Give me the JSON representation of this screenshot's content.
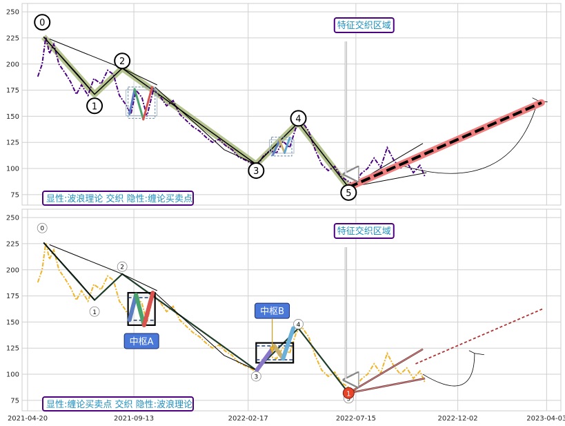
{
  "chart_data": [
    {
      "type": "line",
      "panel": "top",
      "ylim": [
        65,
        258
      ],
      "yticks": [
        75,
        100,
        125,
        150,
        175,
        200,
        225,
        250
      ],
      "grid": true,
      "annotation_feature": "特征交织区域",
      "bottom_label": "显性:波浪理论 交织 隐性:缠论买卖点",
      "colors": {
        "price": "#4b0082",
        "wave_band": "#a8b97a",
        "trend": "#000000",
        "forecast": "#f08080",
        "box": "#7a9ab8"
      },
      "price_series": [
        [
          "2021-05-04",
          188
        ],
        [
          "2021-05-10",
          200
        ],
        [
          "2021-05-15",
          226
        ],
        [
          "2021-05-20",
          210
        ],
        [
          "2021-05-26",
          219
        ],
        [
          "2021-06-02",
          200
        ],
        [
          "2021-06-10",
          192
        ],
        [
          "2021-06-18",
          183
        ],
        [
          "2021-06-26",
          171
        ],
        [
          "2021-07-03",
          180
        ],
        [
          "2021-07-12",
          170
        ],
        [
          "2021-07-20",
          186
        ],
        [
          "2021-07-30",
          181
        ],
        [
          "2021-08-08",
          194
        ],
        [
          "2021-08-16",
          190
        ],
        [
          "2021-08-24",
          170
        ],
        [
          "2021-09-01",
          162
        ],
        [
          "2021-09-09",
          152
        ],
        [
          "2021-09-16",
          175
        ],
        [
          "2021-09-24",
          168
        ],
        [
          "2021-10-01",
          150
        ],
        [
          "2021-10-10",
          176
        ],
        [
          "2021-10-20",
          168
        ],
        [
          "2021-10-28",
          160
        ],
        [
          "2021-11-06",
          165
        ],
        [
          "2021-11-15",
          152
        ],
        [
          "2021-11-24",
          146
        ],
        [
          "2021-12-03",
          140
        ],
        [
          "2021-12-12",
          136
        ],
        [
          "2021-12-21",
          130
        ],
        [
          "2021-12-30",
          125
        ],
        [
          "2022-01-08",
          128
        ],
        [
          "2022-01-17",
          122
        ],
        [
          "2022-01-26",
          118
        ],
        [
          "2022-02-04",
          111
        ],
        [
          "2022-02-13",
          108
        ],
        [
          "2022-02-22",
          105
        ],
        [
          "2022-03-01",
          102
        ],
        [
          "2022-03-10",
          112
        ],
        [
          "2022-03-19",
          117
        ],
        [
          "2022-03-28",
          115
        ],
        [
          "2022-04-06",
          126
        ],
        [
          "2022-04-15",
          120
        ],
        [
          "2022-04-24",
          140
        ],
        [
          "2022-05-02",
          145
        ],
        [
          "2022-05-11",
          136
        ],
        [
          "2022-05-20",
          118
        ],
        [
          "2022-05-29",
          104
        ],
        [
          "2022-06-07",
          98
        ],
        [
          "2022-06-16",
          102
        ],
        [
          "2022-06-25",
          92
        ],
        [
          "2022-07-04",
          88
        ],
        [
          "2022-07-13",
          84
        ],
        [
          "2022-07-22",
          95
        ],
        [
          "2022-07-31",
          100
        ],
        [
          "2022-08-09",
          110
        ],
        [
          "2022-08-18",
          101
        ],
        [
          "2022-08-27",
          120
        ],
        [
          "2022-09-05",
          108
        ],
        [
          "2022-09-14",
          100
        ],
        [
          "2022-09-23",
          106
        ],
        [
          "2022-10-02",
          96
        ],
        [
          "2022-10-11",
          103
        ],
        [
          "2022-10-18",
          92
        ]
      ],
      "wave_points": [
        {
          "label": "0",
          "x": "2021-05-12",
          "y": 226,
          "marker_y": 240
        },
        {
          "label": "1",
          "x": "2021-07-21",
          "y": 171,
          "marker_y": 160
        },
        {
          "label": "2",
          "x": "2021-08-28",
          "y": 196,
          "marker_y": 203
        },
        {
          "label": "3",
          "x": "2022-02-28",
          "y": 104,
          "marker_y": 98
        },
        {
          "label": "4",
          "x": "2022-04-27",
          "y": 144,
          "marker_y": 148
        },
        {
          "label": "5",
          "x": "2022-07-05",
          "y": 82,
          "marker_y": 77
        }
      ],
      "pivot_boxes": [
        {
          "x0": "2021-09-05",
          "x1": "2021-10-12",
          "y0": 148,
          "y1": 178,
          "segments": [
            [
              [
                "2021-09-07",
                152
              ],
              [
                "2021-09-14",
                176
              ],
              [
                "2021-09-26",
                147
              ],
              [
                "2021-10-08",
                178
              ]
            ]
          ]
        },
        {
          "x0": "2022-03-21",
          "x1": "2022-04-18",
          "y0": 112,
          "y1": 130,
          "segments": [
            [
              [
                "2022-03-23",
                113
              ],
              [
                "2022-04-01",
                127
              ],
              [
                "2022-04-08",
                115
              ],
              [
                "2022-04-15",
                129
              ]
            ]
          ]
        }
      ],
      "forecast_line": [
        [
          "2022-07-05",
          82
        ],
        [
          "2023-03-27",
          163
        ]
      ],
      "wedge_lines": [
        [
          [
            "2022-07-05",
            82
          ],
          [
            "2022-10-15",
            124
          ]
        ],
        [
          [
            "2022-07-05",
            82
          ],
          [
            "2022-10-20",
            96
          ]
        ]
      ],
      "arc": {
        "from": [
          "2022-09-15",
          103
        ],
        "to": [
          "2023-03-22",
          165
        ]
      }
    },
    {
      "type": "line",
      "panel": "bottom",
      "ylim": [
        65,
        258
      ],
      "yticks": [
        75,
        100,
        125,
        150,
        175,
        200,
        225,
        250
      ],
      "grid": true,
      "annotation_feature": "特征交织区域",
      "bottom_label": "显性:缠论买卖点 交织 隐性:波浪理论",
      "center_labels": [
        "中枢A",
        "中枢B"
      ],
      "buy_point_label": "1",
      "colors": {
        "price": "#f0b429",
        "trend": "#000000",
        "box": "#1a3a6e",
        "center_fill": "#4a78d8",
        "buy": "#e8442a"
      },
      "price_series": [
        [
          "2021-05-04",
          188
        ],
        [
          "2021-05-10",
          200
        ],
        [
          "2021-05-15",
          226
        ],
        [
          "2021-05-20",
          210
        ],
        [
          "2021-05-26",
          219
        ],
        [
          "2021-06-02",
          200
        ],
        [
          "2021-06-10",
          192
        ],
        [
          "2021-06-18",
          183
        ],
        [
          "2021-06-26",
          171
        ],
        [
          "2021-07-03",
          180
        ],
        [
          "2021-07-12",
          170
        ],
        [
          "2021-07-20",
          186
        ],
        [
          "2021-07-30",
          181
        ],
        [
          "2021-08-08",
          194
        ],
        [
          "2021-08-16",
          190
        ],
        [
          "2021-08-24",
          170
        ],
        [
          "2021-09-01",
          162
        ],
        [
          "2021-09-09",
          152
        ],
        [
          "2021-09-16",
          175
        ],
        [
          "2021-09-24",
          168
        ],
        [
          "2021-10-01",
          150
        ],
        [
          "2021-10-10",
          176
        ],
        [
          "2021-10-20",
          168
        ],
        [
          "2021-10-28",
          160
        ],
        [
          "2021-11-06",
          165
        ],
        [
          "2021-11-15",
          152
        ],
        [
          "2021-11-24",
          146
        ],
        [
          "2021-12-03",
          140
        ],
        [
          "2021-12-12",
          136
        ],
        [
          "2021-12-21",
          130
        ],
        [
          "2021-12-30",
          125
        ],
        [
          "2022-01-08",
          128
        ],
        [
          "2022-01-17",
          122
        ],
        [
          "2022-01-26",
          118
        ],
        [
          "2022-02-04",
          111
        ],
        [
          "2022-02-13",
          108
        ],
        [
          "2022-02-22",
          105
        ],
        [
          "2022-03-01",
          102
        ],
        [
          "2022-03-10",
          112
        ],
        [
          "2022-03-19",
          117
        ],
        [
          "2022-03-28",
          115
        ],
        [
          "2022-04-06",
          126
        ],
        [
          "2022-04-15",
          120
        ],
        [
          "2022-04-24",
          140
        ],
        [
          "2022-05-02",
          145
        ],
        [
          "2022-05-11",
          136
        ],
        [
          "2022-05-20",
          118
        ],
        [
          "2022-05-29",
          104
        ],
        [
          "2022-06-07",
          98
        ],
        [
          "2022-06-16",
          102
        ],
        [
          "2022-06-25",
          92
        ],
        [
          "2022-07-04",
          88
        ],
        [
          "2022-07-13",
          84
        ],
        [
          "2022-07-22",
          95
        ],
        [
          "2022-07-31",
          100
        ],
        [
          "2022-08-09",
          110
        ],
        [
          "2022-08-18",
          101
        ],
        [
          "2022-08-27",
          120
        ],
        [
          "2022-09-05",
          108
        ],
        [
          "2022-09-14",
          100
        ],
        [
          "2022-09-23",
          106
        ],
        [
          "2022-10-02",
          96
        ],
        [
          "2022-10-11",
          103
        ],
        [
          "2022-10-18",
          92
        ]
      ],
      "wave_points": [
        {
          "label": "0",
          "x": "2021-05-12",
          "y": 226,
          "marker_y": 240
        },
        {
          "label": "1",
          "x": "2021-07-21",
          "y": 171,
          "marker_y": 160
        },
        {
          "label": "2",
          "x": "2021-08-28",
          "y": 196,
          "marker_y": 203
        },
        {
          "label": "3",
          "x": "2022-02-28",
          "y": 104,
          "marker_y": 98
        },
        {
          "label": "4",
          "x": "2022-04-27",
          "y": 144,
          "marker_y": 148
        },
        {
          "label": "5",
          "x": "2022-07-05",
          "y": 82,
          "marker_y": 77
        }
      ],
      "pivot_boxes": [
        {
          "x0": "2021-09-05",
          "x1": "2021-10-12",
          "y0": 147,
          "y1": 178,
          "segments": [
            [
              [
                "2021-09-07",
                152
              ],
              [
                "2021-09-16",
                176
              ],
              [
                "2021-09-27",
                147
              ],
              [
                "2021-10-09",
                178
              ]
            ]
          ]
        },
        {
          "x0": "2022-02-28",
          "x1": "2022-04-20",
          "y0": 111,
          "y1": 130,
          "segments": [
            [
              [
                "2022-03-01",
                104
              ],
              [
                "2022-03-25",
                127
              ],
              [
                "2022-04-06",
                115
              ],
              [
                "2022-04-20",
                144
              ]
            ]
          ]
        }
      ],
      "forecast_line": [
        [
          "2022-10-05",
          110
        ],
        [
          "2023-03-30",
          163
        ]
      ],
      "wedge_lines": [
        [
          [
            "2022-07-05",
            82
          ],
          [
            "2022-10-15",
            124
          ]
        ],
        [
          [
            "2022-07-05",
            82
          ],
          [
            "2022-10-18",
            96
          ]
        ]
      ],
      "arc": {
        "from": [
          "2022-10-15",
          100
        ],
        "to": [
          "2022-12-25",
          120
        ]
      }
    }
  ],
  "x_axis": {
    "tick_labels": [
      "2021-04-20",
      "2021-09-13",
      "2022-02-17",
      "2022-07-15",
      "2022-12-02",
      "2023-04-03"
    ],
    "range": [
      "2021-04-20",
      "2023-04-15"
    ]
  }
}
